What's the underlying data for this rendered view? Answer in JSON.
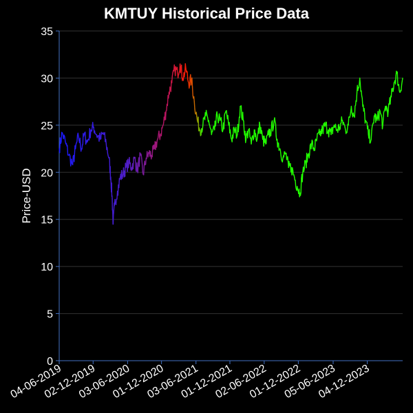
{
  "chart_data": {
    "type": "line",
    "title": "KMTUY Historical Price Data",
    "xlabel": "",
    "ylabel": "Price-USD",
    "ylim": [
      0,
      35
    ],
    "yticks": [
      0,
      5,
      10,
      15,
      20,
      25,
      30,
      35
    ],
    "xlim": [
      "2019-06-04",
      "2024-06-10"
    ],
    "xticks": [
      "04-06-2019",
      "02-12-2019",
      "03-06-2020",
      "01-12-2020",
      "03-06-2021",
      "01-12-2021",
      "02-06-2022",
      "01-12-2022",
      "05-06-2023",
      "04-12-2023"
    ],
    "grid": true,
    "line_color": "gradient blue-purple-red-orange-green",
    "colors": {
      "background": "#000000",
      "axis": "#4472c4",
      "grid": "#333333",
      "start": "#1a1aff",
      "peak": "#ff2200",
      "end": "#22ff00"
    },
    "series": [
      {
        "x": [
          "2019-06-04",
          "2019-06-20",
          "2019-07-10",
          "2019-07-25",
          "2019-08-15",
          "2019-08-30",
          "2019-09-15",
          "2019-10-01",
          "2019-10-15",
          "2019-11-01",
          "2019-11-20",
          "2019-12-05",
          "2019-12-20",
          "2020-01-10",
          "2020-01-25",
          "2020-02-10",
          "2020-02-25",
          "2020-03-05",
          "2020-03-12",
          "2020-03-18",
          "2020-03-25",
          "2020-04-10",
          "2020-04-25",
          "2020-05-10",
          "2020-05-25",
          "2020-06-10",
          "2020-06-25",
          "2020-07-10",
          "2020-07-25",
          "2020-08-10",
          "2020-08-25",
          "2020-09-10",
          "2020-09-25",
          "2020-10-10",
          "2020-10-25",
          "2020-11-10",
          "2020-11-25",
          "2020-12-10",
          "2020-12-25",
          "2021-01-10",
          "2021-01-25",
          "2021-02-10",
          "2021-02-25",
          "2021-03-10",
          "2021-03-25",
          "2021-04-10",
          "2021-04-25",
          "2021-05-10",
          "2021-05-25",
          "2021-06-10",
          "2021-06-25",
          "2021-07-10",
          "2021-07-25",
          "2021-08-10",
          "2021-08-25",
          "2021-09-10",
          "2021-09-25",
          "2021-10-10",
          "2021-10-25",
          "2021-11-10",
          "2021-11-25",
          "2021-12-10",
          "2021-12-25",
          "2022-01-10",
          "2022-01-25",
          "2022-02-10",
          "2022-02-25",
          "2022-03-10",
          "2022-03-25",
          "2022-04-10",
          "2022-04-25",
          "2022-05-10",
          "2022-05-25",
          "2022-06-10",
          "2022-06-25",
          "2022-07-10",
          "2022-07-25",
          "2022-08-10",
          "2022-08-25",
          "2022-09-10",
          "2022-09-25",
          "2022-10-10",
          "2022-10-25",
          "2022-11-10",
          "2022-11-25",
          "2022-12-10",
          "2022-12-25",
          "2023-01-10",
          "2023-01-25",
          "2023-02-10",
          "2023-02-25",
          "2023-03-10",
          "2023-03-25",
          "2023-04-10",
          "2023-04-25",
          "2023-05-10",
          "2023-05-25",
          "2023-06-10",
          "2023-06-25",
          "2023-07-10",
          "2023-07-25",
          "2023-08-10",
          "2023-08-25",
          "2023-09-10",
          "2023-09-25",
          "2023-10-10",
          "2023-10-25",
          "2023-11-10",
          "2023-11-25",
          "2023-12-10",
          "2023-12-25",
          "2024-01-10",
          "2024-01-25",
          "2024-02-10",
          "2024-02-25",
          "2024-03-10",
          "2024-03-25",
          "2024-04-10",
          "2024-04-25",
          "2024-05-10",
          "2024-05-25",
          "2024-06-10"
        ],
        "y": [
          22.5,
          24.2,
          23.0,
          21.8,
          20.8,
          22.5,
          23.8,
          22.5,
          24.0,
          23.2,
          24.5,
          24.8,
          24.0,
          23.5,
          24.2,
          23.0,
          21.5,
          19.5,
          17.5,
          14.5,
          16.5,
          18.0,
          19.5,
          19.8,
          20.5,
          21.0,
          20.5,
          21.5,
          20.2,
          21.8,
          19.8,
          21.5,
          22.0,
          21.8,
          22.5,
          23.5,
          24.0,
          25.0,
          26.5,
          28.5,
          29.5,
          31.0,
          30.5,
          31.5,
          30.0,
          31.0,
          29.5,
          29.8,
          27.5,
          25.5,
          24.5,
          25.0,
          26.0,
          25.5,
          24.0,
          24.5,
          26.0,
          25.5,
          24.5,
          26.5,
          25.0,
          23.5,
          24.5,
          24.0,
          27.0,
          25.5,
          23.5,
          24.5,
          23.0,
          24.5,
          23.5,
          25.0,
          23.5,
          23.0,
          24.0,
          24.5,
          25.5,
          23.5,
          22.5,
          21.5,
          22.0,
          20.5,
          20.5,
          19.5,
          18.5,
          17.8,
          20.0,
          21.0,
          22.0,
          23.0,
          22.5,
          23.5,
          24.0,
          24.5,
          25.0,
          24.5,
          24.0,
          25.0,
          24.5,
          24.8,
          25.5,
          24.5,
          25.0,
          27.0,
          26.0,
          28.5,
          30.0,
          27.0,
          25.5,
          24.0,
          23.5,
          26.0,
          25.5,
          26.5,
          25.0,
          27.0,
          26.5,
          28.0,
          29.5,
          30.5,
          28.5,
          30.0
        ]
      }
    ]
  }
}
